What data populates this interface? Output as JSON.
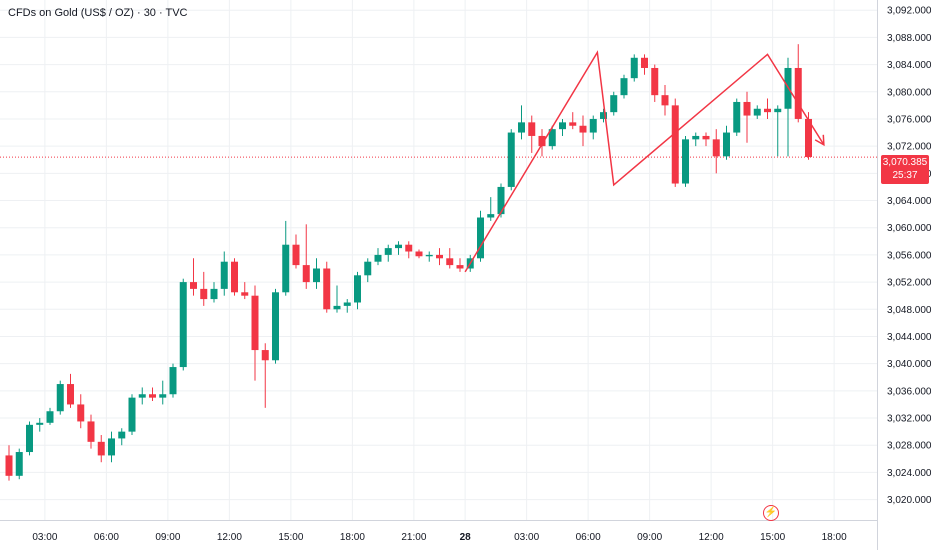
{
  "header": {
    "title": "CFDs on Gold (US$ / OZ) · 30 · TVC"
  },
  "price_tag": {
    "price": "3,070.385",
    "countdown": "25:37"
  },
  "icons": {
    "flash": "lightning-icon"
  },
  "colors": {
    "up": "#089981",
    "down": "#f23645",
    "grid": "#eef0f3",
    "last_price_line": "#f23645"
  },
  "chart_data": {
    "type": "candlestick",
    "title": "CFDs on Gold (US$ / OZ) · 30 · TVC",
    "ylim": [
      3017.0,
      3093.5
    ],
    "y_ticks": [
      3020,
      3024,
      3028,
      3032,
      3036,
      3040,
      3044,
      3048,
      3052,
      3056,
      3060,
      3064,
      3068,
      3072,
      3076,
      3080,
      3084,
      3088,
      3092
    ],
    "y_tick_labels": [
      "3,020.000",
      "3,024.000",
      "3,028.000",
      "3,032.000",
      "3,036.000",
      "3,040.000",
      "3,044.000",
      "3,048.000",
      "3,052.000",
      "3,056.000",
      "3,060.000",
      "3,064.000",
      "3,068.000",
      "3,072.000",
      "3,076.000",
      "3,080.000",
      "3,084.000",
      "3,088.000",
      "3,092.000"
    ],
    "x_ticks": [
      {
        "label": "03:00",
        "t": 3.5
      },
      {
        "label": "06:00",
        "t": 9.5
      },
      {
        "label": "09:00",
        "t": 15.5
      },
      {
        "label": "12:00",
        "t": 21.5
      },
      {
        "label": "15:00",
        "t": 27.5
      },
      {
        "label": "18:00",
        "t": 33.5
      },
      {
        "label": "21:00",
        "t": 39.5
      },
      {
        "label": "28",
        "t": 44.5
      },
      {
        "label": "03:00",
        "t": 50.5
      },
      {
        "label": "06:00",
        "t": 56.5
      },
      {
        "label": "09:00",
        "t": 62.5
      },
      {
        "label": "12:00",
        "t": 68.5
      },
      {
        "label": "15:00",
        "t": 74.5
      },
      {
        "label": "18:00",
        "t": 80.5
      }
    ],
    "grid": true,
    "last_price": 3070.385,
    "candles": [
      {
        "o": 3026.5,
        "h": 3028.0,
        "l": 3022.8,
        "c": 3023.5
      },
      {
        "o": 3023.5,
        "h": 3027.5,
        "l": 3023.0,
        "c": 3027.0
      },
      {
        "o": 3027.0,
        "h": 3031.5,
        "l": 3026.5,
        "c": 3031.0
      },
      {
        "o": 3031.0,
        "h": 3032.0,
        "l": 3030.0,
        "c": 3031.3
      },
      {
        "o": 3031.3,
        "h": 3033.5,
        "l": 3031.0,
        "c": 3033.0
      },
      {
        "o": 3033.0,
        "h": 3037.5,
        "l": 3032.5,
        "c": 3037.0
      },
      {
        "o": 3037.0,
        "h": 3038.5,
        "l": 3033.5,
        "c": 3034.0
      },
      {
        "o": 3034.0,
        "h": 3035.5,
        "l": 3030.5,
        "c": 3031.5
      },
      {
        "o": 3031.5,
        "h": 3032.5,
        "l": 3027.5,
        "c": 3028.5
      },
      {
        "o": 3028.5,
        "h": 3029.5,
        "l": 3025.5,
        "c": 3026.5
      },
      {
        "o": 3026.5,
        "h": 3030.0,
        "l": 3025.5,
        "c": 3029.0
      },
      {
        "o": 3029.0,
        "h": 3030.5,
        "l": 3028.0,
        "c": 3030.0
      },
      {
        "o": 3030.0,
        "h": 3035.5,
        "l": 3029.5,
        "c": 3035.0
      },
      {
        "o": 3035.0,
        "h": 3036.5,
        "l": 3034.0,
        "c": 3035.5
      },
      {
        "o": 3035.5,
        "h": 3036.5,
        "l": 3034.5,
        "c": 3035.0
      },
      {
        "o": 3035.0,
        "h": 3037.5,
        "l": 3034.0,
        "c": 3035.5
      },
      {
        "o": 3035.5,
        "h": 3040.0,
        "l": 3035.0,
        "c": 3039.5
      },
      {
        "o": 3039.5,
        "h": 3052.5,
        "l": 3039.0,
        "c": 3052.0
      },
      {
        "o": 3052.0,
        "h": 3055.5,
        "l": 3050.0,
        "c": 3051.0
      },
      {
        "o": 3051.0,
        "h": 3053.5,
        "l": 3048.5,
        "c": 3049.5
      },
      {
        "o": 3049.5,
        "h": 3052.0,
        "l": 3049.0,
        "c": 3051.0
      },
      {
        "o": 3051.0,
        "h": 3056.5,
        "l": 3050.0,
        "c": 3055.0
      },
      {
        "o": 3055.0,
        "h": 3055.5,
        "l": 3050.0,
        "c": 3050.5
      },
      {
        "o": 3050.5,
        "h": 3052.0,
        "l": 3049.5,
        "c": 3050.0
      },
      {
        "o": 3050.0,
        "h": 3051.5,
        "l": 3037.5,
        "c": 3042.0
      },
      {
        "o": 3042.0,
        "h": 3043.0,
        "l": 3033.5,
        "c": 3040.5
      },
      {
        "o": 3040.5,
        "h": 3051.0,
        "l": 3040.0,
        "c": 3050.5
      },
      {
        "o": 3050.5,
        "h": 3061.0,
        "l": 3050.0,
        "c": 3057.5
      },
      {
        "o": 3057.5,
        "h": 3059.0,
        "l": 3054.0,
        "c": 3054.5
      },
      {
        "o": 3054.5,
        "h": 3060.5,
        "l": 3051.0,
        "c": 3052.0
      },
      {
        "o": 3052.0,
        "h": 3055.5,
        "l": 3051.0,
        "c": 3054.0
      },
      {
        "o": 3054.0,
        "h": 3055.0,
        "l": 3047.5,
        "c": 3048.0
      },
      {
        "o": 3048.0,
        "h": 3051.5,
        "l": 3047.5,
        "c": 3048.5
      },
      {
        "o": 3048.5,
        "h": 3049.5,
        "l": 3047.5,
        "c": 3049.0
      },
      {
        "o": 3049.0,
        "h": 3053.5,
        "l": 3048.0,
        "c": 3053.0
      },
      {
        "o": 3053.0,
        "h": 3055.5,
        "l": 3052.0,
        "c": 3055.0
      },
      {
        "o": 3055.0,
        "h": 3057.0,
        "l": 3054.5,
        "c": 3056.0
      },
      {
        "o": 3056.0,
        "h": 3057.5,
        "l": 3055.0,
        "c": 3057.0
      },
      {
        "o": 3057.0,
        "h": 3058.0,
        "l": 3056.0,
        "c": 3057.5
      },
      {
        "o": 3057.5,
        "h": 3058.0,
        "l": 3055.5,
        "c": 3056.5
      },
      {
        "o": 3056.5,
        "h": 3056.8,
        "l": 3055.5,
        "c": 3055.8
      },
      {
        "o": 3055.8,
        "h": 3056.5,
        "l": 3055.0,
        "c": 3056.0
      },
      {
        "o": 3056.0,
        "h": 3057.0,
        "l": 3054.5,
        "c": 3055.5
      },
      {
        "o": 3055.5,
        "h": 3057.0,
        "l": 3054.0,
        "c": 3054.5
      },
      {
        "o": 3054.5,
        "h": 3055.5,
        "l": 3053.5,
        "c": 3054.0
      },
      {
        "o": 3054.0,
        "h": 3056.0,
        "l": 3053.5,
        "c": 3055.5
      },
      {
        "o": 3055.5,
        "h": 3062.5,
        "l": 3055.0,
        "c": 3061.5
      },
      {
        "o": 3061.5,
        "h": 3064.5,
        "l": 3061.0,
        "c": 3062.0
      },
      {
        "o": 3062.0,
        "h": 3066.5,
        "l": 3061.5,
        "c": 3066.0
      },
      {
        "o": 3066.0,
        "h": 3074.5,
        "l": 3065.5,
        "c": 3074.0
      },
      {
        "o": 3074.0,
        "h": 3078.0,
        "l": 3073.0,
        "c": 3075.5
      },
      {
        "o": 3075.5,
        "h": 3076.5,
        "l": 3071.0,
        "c": 3073.5
      },
      {
        "o": 3073.5,
        "h": 3074.5,
        "l": 3070.5,
        "c": 3072.0
      },
      {
        "o": 3072.0,
        "h": 3075.0,
        "l": 3071.5,
        "c": 3074.5
      },
      {
        "o": 3074.5,
        "h": 3076.0,
        "l": 3073.5,
        "c": 3075.5
      },
      {
        "o": 3075.5,
        "h": 3077.0,
        "l": 3074.5,
        "c": 3075.0
      },
      {
        "o": 3075.0,
        "h": 3076.5,
        "l": 3072.0,
        "c": 3074.0
      },
      {
        "o": 3074.0,
        "h": 3076.5,
        "l": 3073.0,
        "c": 3076.0
      },
      {
        "o": 3076.0,
        "h": 3077.5,
        "l": 3075.5,
        "c": 3077.0
      },
      {
        "o": 3077.0,
        "h": 3080.0,
        "l": 3076.5,
        "c": 3079.5
      },
      {
        "o": 3079.5,
        "h": 3082.5,
        "l": 3079.0,
        "c": 3082.0
      },
      {
        "o": 3082.0,
        "h": 3085.5,
        "l": 3081.5,
        "c": 3085.0
      },
      {
        "o": 3085.0,
        "h": 3085.5,
        "l": 3082.5,
        "c": 3083.5
      },
      {
        "o": 3083.5,
        "h": 3084.0,
        "l": 3078.5,
        "c": 3079.5
      },
      {
        "o": 3079.5,
        "h": 3081.0,
        "l": 3076.5,
        "c": 3078.0
      },
      {
        "o": 3078.0,
        "h": 3079.0,
        "l": 3066.0,
        "c": 3066.5
      },
      {
        "o": 3066.5,
        "h": 3073.5,
        "l": 3066.0,
        "c": 3073.0
      },
      {
        "o": 3073.0,
        "h": 3074.0,
        "l": 3072.0,
        "c": 3073.5
      },
      {
        "o": 3073.5,
        "h": 3074.0,
        "l": 3072.0,
        "c": 3073.0
      },
      {
        "o": 3073.0,
        "h": 3074.5,
        "l": 3068.0,
        "c": 3070.5
      },
      {
        "o": 3070.5,
        "h": 3075.0,
        "l": 3070.0,
        "c": 3074.0
      },
      {
        "o": 3074.0,
        "h": 3079.0,
        "l": 3073.5,
        "c": 3078.5
      },
      {
        "o": 3078.5,
        "h": 3080.0,
        "l": 3072.5,
        "c": 3076.5
      },
      {
        "o": 3076.5,
        "h": 3078.0,
        "l": 3076.0,
        "c": 3077.5
      },
      {
        "o": 3077.5,
        "h": 3079.0,
        "l": 3076.0,
        "c": 3077.0
      },
      {
        "o": 3077.0,
        "h": 3078.0,
        "l": 3070.5,
        "c": 3077.5
      },
      {
        "o": 3077.5,
        "h": 3085.0,
        "l": 3070.5,
        "c": 3083.5
      },
      {
        "o": 3083.5,
        "h": 3087.0,
        "l": 3075.5,
        "c": 3076.0
      },
      {
        "o": 3076.0,
        "h": 3077.0,
        "l": 3070.0,
        "c": 3070.4
      }
    ],
    "annotations": [
      {
        "type": "polyline",
        "points": [
          [
            44.5,
            3053.5
          ],
          [
            57.4,
            3085.8
          ],
          [
            59.0,
            3066.3
          ],
          [
            74.0,
            3085.5
          ],
          [
            79.5,
            3072.2
          ]
        ],
        "arrow_end": true
      }
    ]
  }
}
